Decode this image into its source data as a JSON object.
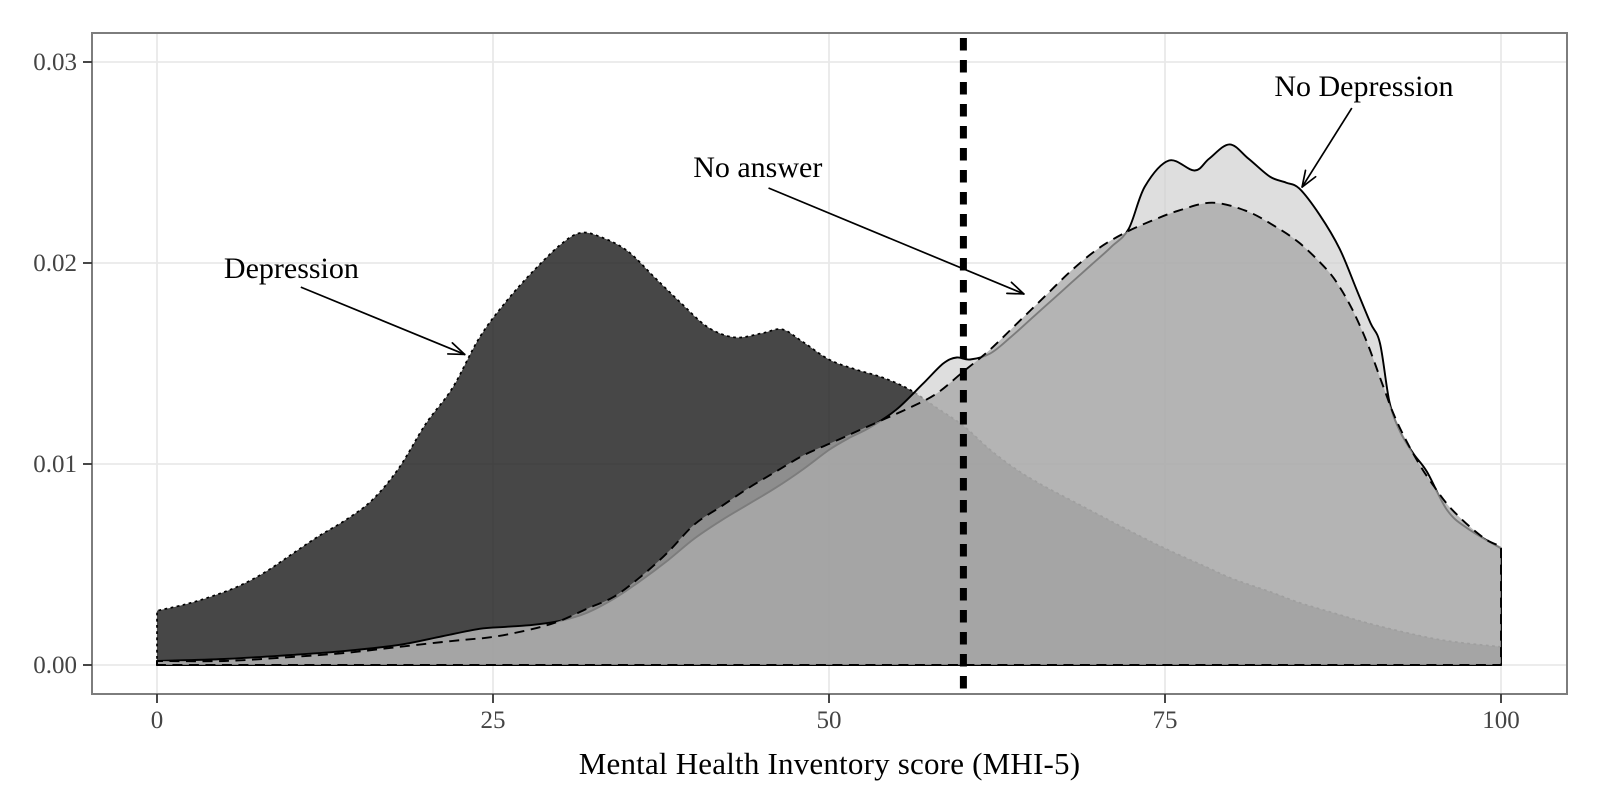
{
  "chart_data": {
    "type": "area",
    "subtype": "kernel-density",
    "title": "",
    "xlabel": "Mental Health Inventory score (MHI-5)",
    "ylabel": "",
    "xlim": [
      0,
      100
    ],
    "ylim": [
      0,
      0.0314
    ],
    "grid": "major-only",
    "legend": "annotated-arrows-instead-of-legend",
    "x_ticks": {
      "values": [
        0,
        25,
        50,
        75,
        100
      ],
      "labels": [
        "0",
        "25",
        "50",
        "75",
        "100"
      ]
    },
    "y_ticks": {
      "values": [
        0,
        0.01,
        0.02,
        0.03
      ],
      "labels": [
        "0.00",
        "0.01",
        "0.02",
        "0.03"
      ]
    },
    "reference_line": {
      "x": 60,
      "orientation": "vertical",
      "linetype": "dashed-thick",
      "color": "#000000"
    },
    "colors": {
      "panel_background": "#ffffff",
      "panel_border": "#7d7d7d",
      "grid": "#e9e9e9",
      "tick_mark": "#333333",
      "tick_label": "#444444",
      "axis_title": "#000000",
      "annotation_text": "#000000",
      "annotation_arrow": "#000000"
    },
    "series": [
      {
        "name": "depression",
        "label": "Depression",
        "fill": "rgba(25,25,25,0.80)",
        "stroke": "#000000",
        "linetype": "dotted",
        "peak": {
          "x": 31.5,
          "density": 0.0215
        },
        "x": [
          0,
          2,
          4,
          6,
          8,
          10,
          12,
          14,
          16,
          18,
          20,
          22,
          24,
          26,
          28,
          30,
          31.5,
          33,
          35,
          37,
          39,
          41,
          43,
          45,
          46.5,
          48,
          50,
          52,
          54,
          56,
          58,
          60,
          62,
          64,
          66,
          68,
          70,
          72,
          75,
          78,
          80,
          83,
          85,
          88,
          90,
          93,
          96,
          100
        ],
        "density": [
          0.0027,
          0.003,
          0.0034,
          0.0039,
          0.0046,
          0.0055,
          0.0064,
          0.0072,
          0.0082,
          0.0098,
          0.012,
          0.0138,
          0.0163,
          0.0181,
          0.0196,
          0.0209,
          0.0215,
          0.0213,
          0.0206,
          0.0193,
          0.018,
          0.0168,
          0.0163,
          0.0165,
          0.0167,
          0.0161,
          0.0152,
          0.0147,
          0.0143,
          0.0137,
          0.0128,
          0.0119,
          0.0107,
          0.0097,
          0.0089,
          0.0082,
          0.0075,
          0.0068,
          0.0058,
          0.0049,
          0.0043,
          0.0036,
          0.0031,
          0.0025,
          0.0021,
          0.0016,
          0.0012,
          0.0009
        ]
      },
      {
        "name": "no_depression",
        "label": "No Depression",
        "fill": "rgba(207,207,207,0.68)",
        "stroke": "#000000",
        "linetype": "solid",
        "peak": {
          "x": 79.8,
          "density": 0.0259
        },
        "x": [
          0,
          5,
          10,
          14,
          18,
          21,
          24,
          26,
          28,
          30,
          32,
          34,
          36,
          38,
          40,
          42,
          44,
          46,
          48,
          50,
          51.5,
          53,
          55,
          57,
          58.5,
          59.5,
          60.5,
          62,
          63.5,
          65,
          66.5,
          68,
          69.5,
          71,
          72.3,
          73.5,
          75.3,
          77.2,
          78.3,
          79.8,
          81.2,
          82.8,
          84,
          85,
          86.5,
          88,
          89.3,
          90.3,
          91,
          91.7,
          92.5,
          93.5,
          94.5,
          96,
          97.5,
          100
        ],
        "density": [
          0.0002,
          0.0003,
          0.0005,
          0.0007,
          0.001,
          0.0014,
          0.0018,
          0.0019,
          0.002,
          0.0022,
          0.0026,
          0.0033,
          0.0042,
          0.0052,
          0.0063,
          0.0072,
          0.008,
          0.0088,
          0.0097,
          0.0107,
          0.0113,
          0.0118,
          0.0127,
          0.014,
          0.015,
          0.0153,
          0.0152,
          0.0155,
          0.0163,
          0.0172,
          0.0181,
          0.019,
          0.0199,
          0.0208,
          0.0217,
          0.0238,
          0.0251,
          0.0246,
          0.0252,
          0.0259,
          0.0252,
          0.0243,
          0.024,
          0.0237,
          0.0224,
          0.0207,
          0.0186,
          0.017,
          0.016,
          0.0131,
          0.0116,
          0.0105,
          0.0096,
          0.0077,
          0.0068,
          0.0058
        ]
      },
      {
        "name": "no_answer",
        "label": "No answer",
        "fill": "rgba(166,166,166,0.75)",
        "stroke": "#000000",
        "linetype": "dashed",
        "peak": {
          "x": 78.5,
          "density": 0.023
        },
        "x": [
          0,
          5,
          10,
          14,
          18,
          22,
          25,
          28,
          30,
          32,
          34,
          36,
          38,
          40,
          42,
          44,
          46,
          48,
          50,
          52,
          54,
          56,
          58,
          60,
          62,
          64,
          66,
          68,
          70,
          72,
          74,
          76,
          78.5,
          81,
          83,
          85,
          87,
          88,
          89,
          90,
          91,
          92,
          93,
          94,
          95,
          96,
          97,
          98,
          99,
          100
        ],
        "density": [
          0.0002,
          0.0002,
          0.0004,
          0.0006,
          0.0009,
          0.0012,
          0.0014,
          0.0018,
          0.0022,
          0.0028,
          0.0034,
          0.0044,
          0.0056,
          0.007,
          0.0079,
          0.0088,
          0.0096,
          0.0104,
          0.011,
          0.0116,
          0.0122,
          0.0128,
          0.0135,
          0.0146,
          0.0157,
          0.017,
          0.0183,
          0.0196,
          0.0207,
          0.0215,
          0.0221,
          0.0226,
          0.023,
          0.0226,
          0.0219,
          0.021,
          0.0197,
          0.0188,
          0.0176,
          0.0161,
          0.0143,
          0.0125,
          0.0111,
          0.0099,
          0.0089,
          0.008,
          0.0073,
          0.0067,
          0.0062,
          0.0059
        ]
      }
    ],
    "annotations": [
      {
        "name": "depression",
        "text": "Depression",
        "label_x": 10.0,
        "label_y": 0.01925,
        "arrow_from_x": 10.7,
        "arrow_from_y": 0.0188,
        "arrow_to_x": 22.9,
        "arrow_to_y": 0.01545
      },
      {
        "name": "no-answer",
        "text": "No answer",
        "label_x": 44.7,
        "label_y": 0.02428,
        "arrow_from_x": 45.5,
        "arrow_from_y": 0.02373,
        "arrow_to_x": 64.5,
        "arrow_to_y": 0.01846
      },
      {
        "name": "no-depression",
        "text": "No Depression",
        "label_x": 89.8,
        "label_y": 0.02831,
        "arrow_from_x": 88.9,
        "arrow_from_y": 0.02771,
        "arrow_to_x": 85.2,
        "arrow_to_y": 0.02378
      }
    ]
  }
}
